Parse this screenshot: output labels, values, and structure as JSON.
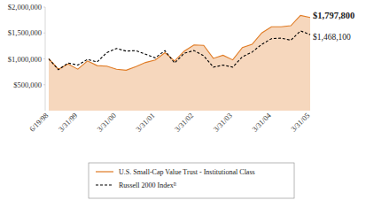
{
  "chart_data": {
    "type": "line",
    "categories": [
      "6/19/98",
      null,
      null,
      "3/31/99",
      null,
      null,
      null,
      "3/31/00",
      null,
      null,
      null,
      "3/31/01",
      null,
      null,
      null,
      "3/31/02",
      null,
      null,
      null,
      "3/31/03",
      null,
      null,
      null,
      "3/31/04",
      null,
      null,
      null,
      "3/31/05"
    ],
    "series": [
      {
        "name": "U.S. Small-Cap Value Trust - Institutional Class",
        "type": "area",
        "color": "#e07b24",
        "line_style": "solid",
        "values": [
          1000000,
          800000,
          900000,
          800000,
          960000,
          870000,
          860000,
          800000,
          780000,
          850000,
          930000,
          980000,
          1120000,
          960000,
          1150000,
          1270000,
          1260000,
          1010000,
          1070000,
          980000,
          1220000,
          1280000,
          1500000,
          1620000,
          1620000,
          1640000,
          1840000,
          1797800
        ],
        "value_labels": [
          null,
          null,
          null,
          null,
          null,
          null,
          null,
          null,
          null,
          null,
          null,
          null,
          null,
          null,
          null,
          null,
          null,
          null,
          null,
          null,
          null,
          null,
          null,
          null,
          null,
          null,
          null,
          "$1,797,800"
        ]
      },
      {
        "name": "Russell 2000 Indexᴮ",
        "type": "line",
        "color": "#000000",
        "line_style": "dashed",
        "values": [
          1000000,
          790000,
          920000,
          880000,
          990000,
          940000,
          1120000,
          1200000,
          1150000,
          1160000,
          1090000,
          1020000,
          1160000,
          920000,
          1110000,
          1160000,
          1060000,
          840000,
          880000,
          840000,
          1040000,
          1130000,
          1280000,
          1390000,
          1400000,
          1360000,
          1540000,
          1468100
        ],
        "value_labels": [
          null,
          null,
          null,
          null,
          null,
          null,
          null,
          null,
          null,
          null,
          null,
          null,
          null,
          null,
          null,
          null,
          null,
          null,
          null,
          null,
          null,
          null,
          null,
          null,
          null,
          null,
          null,
          "$1,468,100"
        ]
      }
    ],
    "ylim": [
      0,
      2000000
    ],
    "yticks": [
      {
        "value": 500000,
        "label": "$500,000"
      },
      {
        "value": 1000000,
        "label": "$1,000,000"
      },
      {
        "value": 1500000,
        "label": "$1,500,000"
      },
      {
        "value": 2000000,
        "label": "$2,000,000"
      }
    ],
    "grid": false,
    "legend": "bottom"
  }
}
